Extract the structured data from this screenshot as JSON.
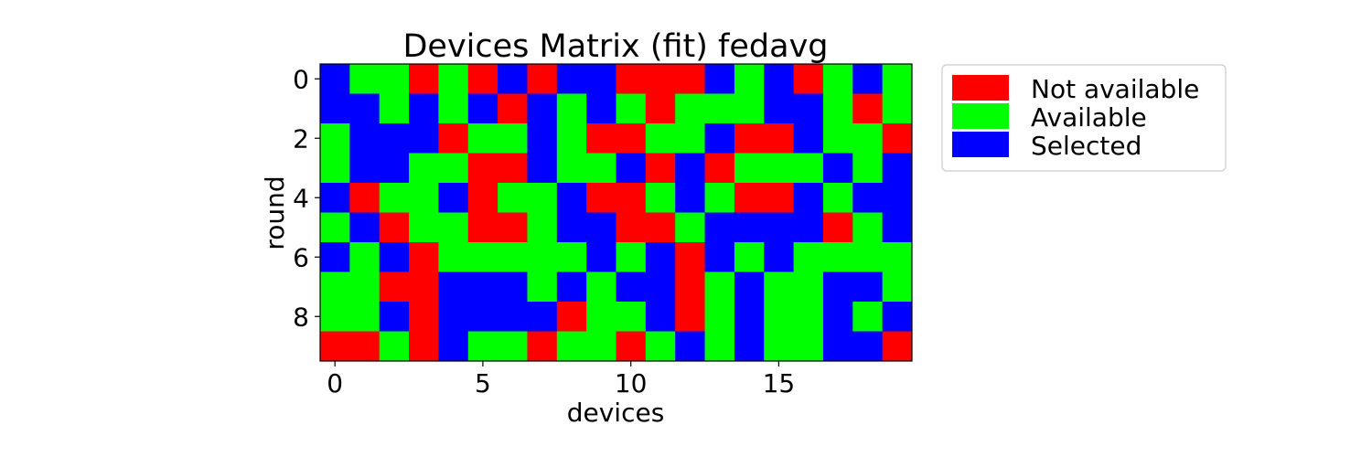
{
  "chart_data": {
    "type": "heatmap",
    "title": "Devices Matrix (fit) fedavg",
    "xlabel": "devices",
    "ylabel": "round",
    "x_ticks": [
      0,
      5,
      10,
      15
    ],
    "y_ticks": [
      0,
      2,
      4,
      6,
      8
    ],
    "columns": 20,
    "rows": 10,
    "state_codes": {
      "0": "Not available",
      "1": "Available",
      "2": "Selected"
    },
    "state_colors": {
      "0": "#ff0000",
      "1": "#00ff00",
      "2": "#0000ff"
    },
    "matrix": [
      [
        2,
        1,
        1,
        0,
        1,
        0,
        2,
        0,
        2,
        2,
        0,
        0,
        0,
        2,
        1,
        2,
        0,
        1,
        2,
        1
      ],
      [
        2,
        2,
        1,
        2,
        1,
        2,
        0,
        2,
        1,
        2,
        1,
        0,
        1,
        1,
        1,
        2,
        2,
        1,
        0,
        1
      ],
      [
        1,
        2,
        2,
        2,
        0,
        1,
        1,
        2,
        1,
        0,
        0,
        1,
        1,
        2,
        0,
        0,
        2,
        1,
        1,
        0
      ],
      [
        1,
        2,
        2,
        1,
        1,
        0,
        0,
        2,
        1,
        1,
        2,
        0,
        2,
        0,
        1,
        1,
        1,
        2,
        1,
        2
      ],
      [
        2,
        0,
        1,
        1,
        2,
        0,
        1,
        1,
        2,
        0,
        0,
        1,
        2,
        1,
        0,
        0,
        2,
        1,
        2,
        2
      ],
      [
        1,
        2,
        0,
        1,
        1,
        0,
        0,
        1,
        2,
        2,
        0,
        0,
        1,
        2,
        2,
        2,
        2,
        0,
        1,
        2
      ],
      [
        2,
        1,
        2,
        0,
        1,
        1,
        1,
        1,
        1,
        2,
        1,
        2,
        0,
        2,
        1,
        2,
        1,
        1,
        1,
        1
      ],
      [
        1,
        1,
        0,
        0,
        2,
        2,
        2,
        1,
        2,
        1,
        2,
        2,
        0,
        1,
        2,
        1,
        1,
        2,
        2,
        1
      ],
      [
        1,
        1,
        2,
        0,
        2,
        2,
        2,
        2,
        0,
        1,
        1,
        2,
        0,
        1,
        2,
        1,
        1,
        2,
        1,
        2
      ],
      [
        0,
        0,
        1,
        0,
        2,
        1,
        1,
        0,
        1,
        1,
        0,
        1,
        2,
        1,
        2,
        1,
        1,
        2,
        2,
        0
      ]
    ],
    "legend": {
      "placement": "outside-right-top",
      "entries": [
        {
          "label": "Not available",
          "color": "#ff0000"
        },
        {
          "label": "Available",
          "color": "#00ff00"
        },
        {
          "label": "Selected",
          "color": "#0000ff"
        }
      ]
    },
    "grid": false
  }
}
